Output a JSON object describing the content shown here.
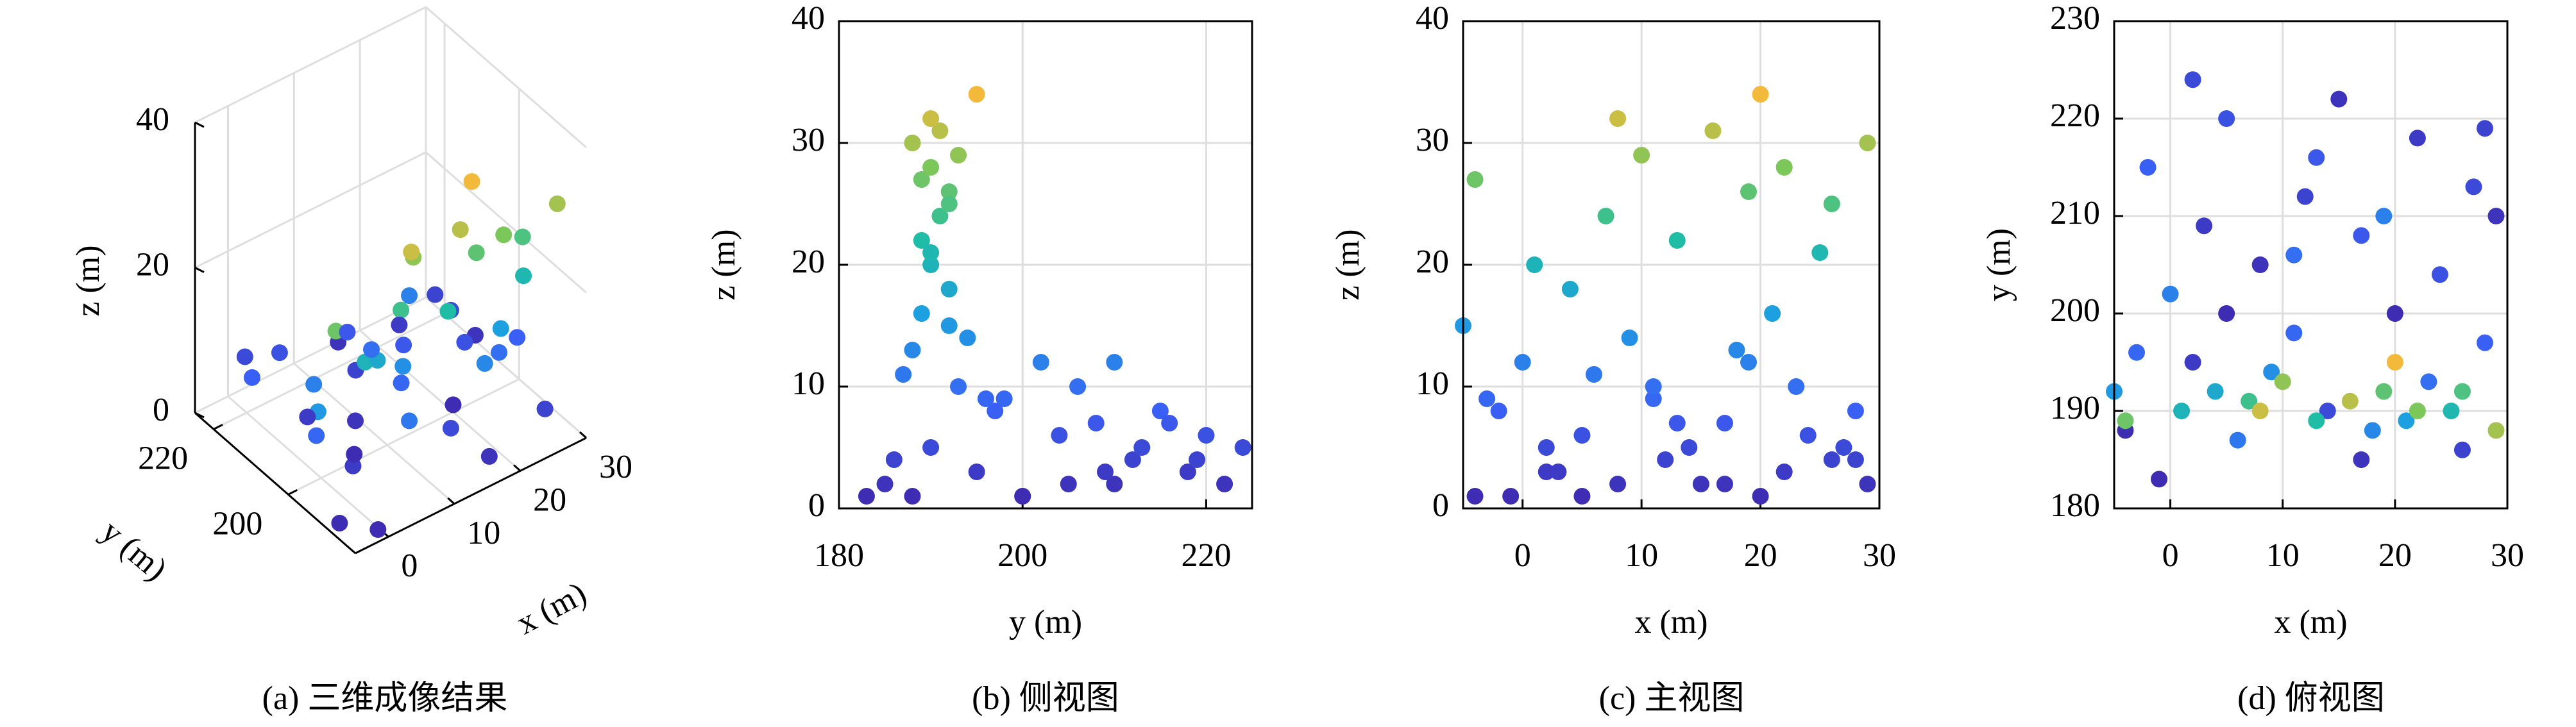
{
  "chart_data": [
    {
      "type": "scatter3d",
      "caption": "(a) 三维成像结果",
      "xlabel": "x (m)",
      "ylabel": "y (m)",
      "zlabel": "z (m)",
      "xlim": [
        -5,
        30
      ],
      "ylim": [
        182,
        225
      ],
      "zlim": [
        0,
        40
      ],
      "xticks": [
        0,
        10,
        20,
        30
      ],
      "yticks": [
        200,
        220
      ],
      "zticks": [
        0,
        20,
        40
      ],
      "grid": true,
      "x": [
        -4,
        2,
        8,
        14,
        20,
        26,
        29,
        -2,
        5,
        11,
        17,
        23,
        0,
        6,
        12,
        18,
        24,
        28,
        -5,
        3,
        9,
        15,
        21,
        27,
        1,
        7,
        13,
        19,
        25,
        -4,
        10,
        16,
        22,
        29,
        4,
        20,
        8,
        26,
        -3,
        13,
        22,
        5,
        17,
        28,
        -1,
        11,
        19,
        2
      ],
      "y": [
        188,
        195,
        205,
        190,
        200,
        186,
        210,
        215,
        220,
        198,
        208,
        193,
        202,
        187,
        212,
        188,
        204,
        197,
        192,
        209,
        194,
        222,
        189,
        213,
        190,
        191,
        189,
        192,
        190,
        189,
        193,
        191,
        190,
        188,
        192,
        195,
        190,
        192,
        196,
        216,
        218,
        200,
        185,
        219,
        183,
        206,
        210,
        224
      ],
      "z": [
        1,
        3,
        2,
        5,
        1,
        4,
        2,
        8,
        6,
        9,
        7,
        10,
        12,
        11,
        4,
        13,
        6,
        8,
        15,
        3,
        14,
        2,
        16,
        5,
        20,
        24,
        22,
        26,
        21,
        27,
        29,
        31,
        28,
        30,
        18,
        34,
        32,
        25,
        9,
        7,
        3,
        1,
        2,
        4,
        1,
        10,
        12,
        5
      ]
    },
    {
      "type": "scatter",
      "caption": "(b) 侧视图",
      "xlabel": "y (m)",
      "ylabel": "z (m)",
      "xlim": [
        180,
        225
      ],
      "ylim": [
        0,
        40
      ],
      "xticks": [
        180,
        200,
        220
      ],
      "yticks": [
        0,
        10,
        20,
        30,
        40
      ],
      "grid": true,
      "x": [
        188,
        195,
        205,
        190,
        200,
        186,
        210,
        215,
        220,
        198,
        208,
        193,
        202,
        187,
        212,
        188,
        204,
        197,
        192,
        209,
        194,
        222,
        189,
        213,
        190,
        191,
        189,
        192,
        190,
        189,
        193,
        191,
        190,
        188,
        192,
        195,
        190,
        192,
        196,
        216,
        218,
        200,
        185,
        219,
        183,
        206,
        210,
        224
      ],
      "y": [
        1,
        3,
        2,
        5,
        1,
        4,
        2,
        8,
        6,
        9,
        7,
        10,
        12,
        11,
        4,
        13,
        6,
        8,
        15,
        3,
        14,
        2,
        16,
        5,
        20,
        24,
        22,
        26,
        21,
        27,
        29,
        31,
        28,
        30,
        18,
        34,
        32,
        25,
        9,
        7,
        3,
        1,
        2,
        4,
        1,
        10,
        12,
        5
      ],
      "c": [
        1,
        3,
        2,
        5,
        1,
        4,
        2,
        8,
        6,
        9,
        7,
        10,
        12,
        11,
        4,
        13,
        6,
        8,
        15,
        3,
        14,
        2,
        16,
        5,
        20,
        24,
        22,
        26,
        21,
        27,
        29,
        31,
        28,
        30,
        18,
        34,
        32,
        25,
        9,
        7,
        3,
        1,
        2,
        4,
        1,
        10,
        12,
        5
      ]
    },
    {
      "type": "scatter",
      "caption": "(c) 主视图",
      "xlabel": "x (m)",
      "ylabel": "z (m)",
      "xlim": [
        -5,
        30
      ],
      "ylim": [
        0,
        40
      ],
      "xticks": [
        0,
        10,
        20,
        30
      ],
      "yticks": [
        0,
        10,
        20,
        30,
        40
      ],
      "grid": true,
      "x": [
        -4,
        2,
        8,
        14,
        20,
        26,
        29,
        -2,
        5,
        11,
        17,
        23,
        0,
        6,
        12,
        18,
        24,
        28,
        -5,
        3,
        9,
        15,
        21,
        27,
        1,
        7,
        13,
        19,
        25,
        -4,
        10,
        16,
        22,
        29,
        4,
        20,
        8,
        26,
        -3,
        13,
        22,
        5,
        17,
        28,
        -1,
        11,
        19,
        2
      ],
      "y": [
        1,
        3,
        2,
        5,
        1,
        4,
        2,
        8,
        6,
        9,
        7,
        10,
        12,
        11,
        4,
        13,
        6,
        8,
        15,
        3,
        14,
        2,
        16,
        5,
        20,
        24,
        22,
        26,
        21,
        27,
        29,
        31,
        28,
        30,
        18,
        34,
        32,
        25,
        9,
        7,
        3,
        1,
        2,
        4,
        1,
        10,
        12,
        5
      ],
      "c": [
        1,
        3,
        2,
        5,
        1,
        4,
        2,
        8,
        6,
        9,
        7,
        10,
        12,
        11,
        4,
        13,
        6,
        8,
        15,
        3,
        14,
        2,
        16,
        5,
        20,
        24,
        22,
        26,
        21,
        27,
        29,
        31,
        28,
        30,
        18,
        34,
        32,
        25,
        9,
        7,
        3,
        1,
        2,
        4,
        1,
        10,
        12,
        5
      ]
    },
    {
      "type": "scatter",
      "caption": "(d) 俯视图",
      "xlabel": "x (m)",
      "ylabel": "y (m)",
      "xlim": [
        -5,
        30
      ],
      "ylim": [
        180,
        230
      ],
      "xticks": [
        0,
        10,
        20,
        30
      ],
      "yticks": [
        180,
        190,
        200,
        210,
        220,
        230
      ],
      "grid": true,
      "x": [
        -4,
        2,
        8,
        14,
        20,
        26,
        29,
        -2,
        5,
        11,
        17,
        23,
        0,
        6,
        12,
        18,
        24,
        28,
        -5,
        3,
        9,
        15,
        21,
        27,
        1,
        7,
        13,
        19,
        25,
        -4,
        10,
        16,
        22,
        29,
        4,
        20,
        8,
        26,
        -3,
        13,
        22,
        5,
        17,
        28,
        -1,
        11,
        19,
        2
      ],
      "y": [
        188,
        195,
        205,
        190,
        200,
        186,
        210,
        215,
        220,
        198,
        208,
        193,
        202,
        187,
        212,
        188,
        204,
        197,
        192,
        209,
        194,
        222,
        189,
        213,
        190,
        191,
        189,
        192,
        190,
        189,
        193,
        191,
        190,
        188,
        192,
        195,
        190,
        192,
        196,
        216,
        218,
        200,
        185,
        219,
        183,
        206,
        210,
        224
      ],
      "c": [
        1,
        3,
        2,
        5,
        1,
        4,
        2,
        8,
        6,
        9,
        7,
        10,
        12,
        11,
        4,
        13,
        6,
        8,
        15,
        3,
        14,
        2,
        16,
        5,
        20,
        24,
        22,
        26,
        21,
        27,
        29,
        31,
        28,
        30,
        18,
        34,
        32,
        25,
        9,
        7,
        3,
        1,
        2,
        4,
        1,
        10,
        12,
        5
      ]
    }
  ]
}
